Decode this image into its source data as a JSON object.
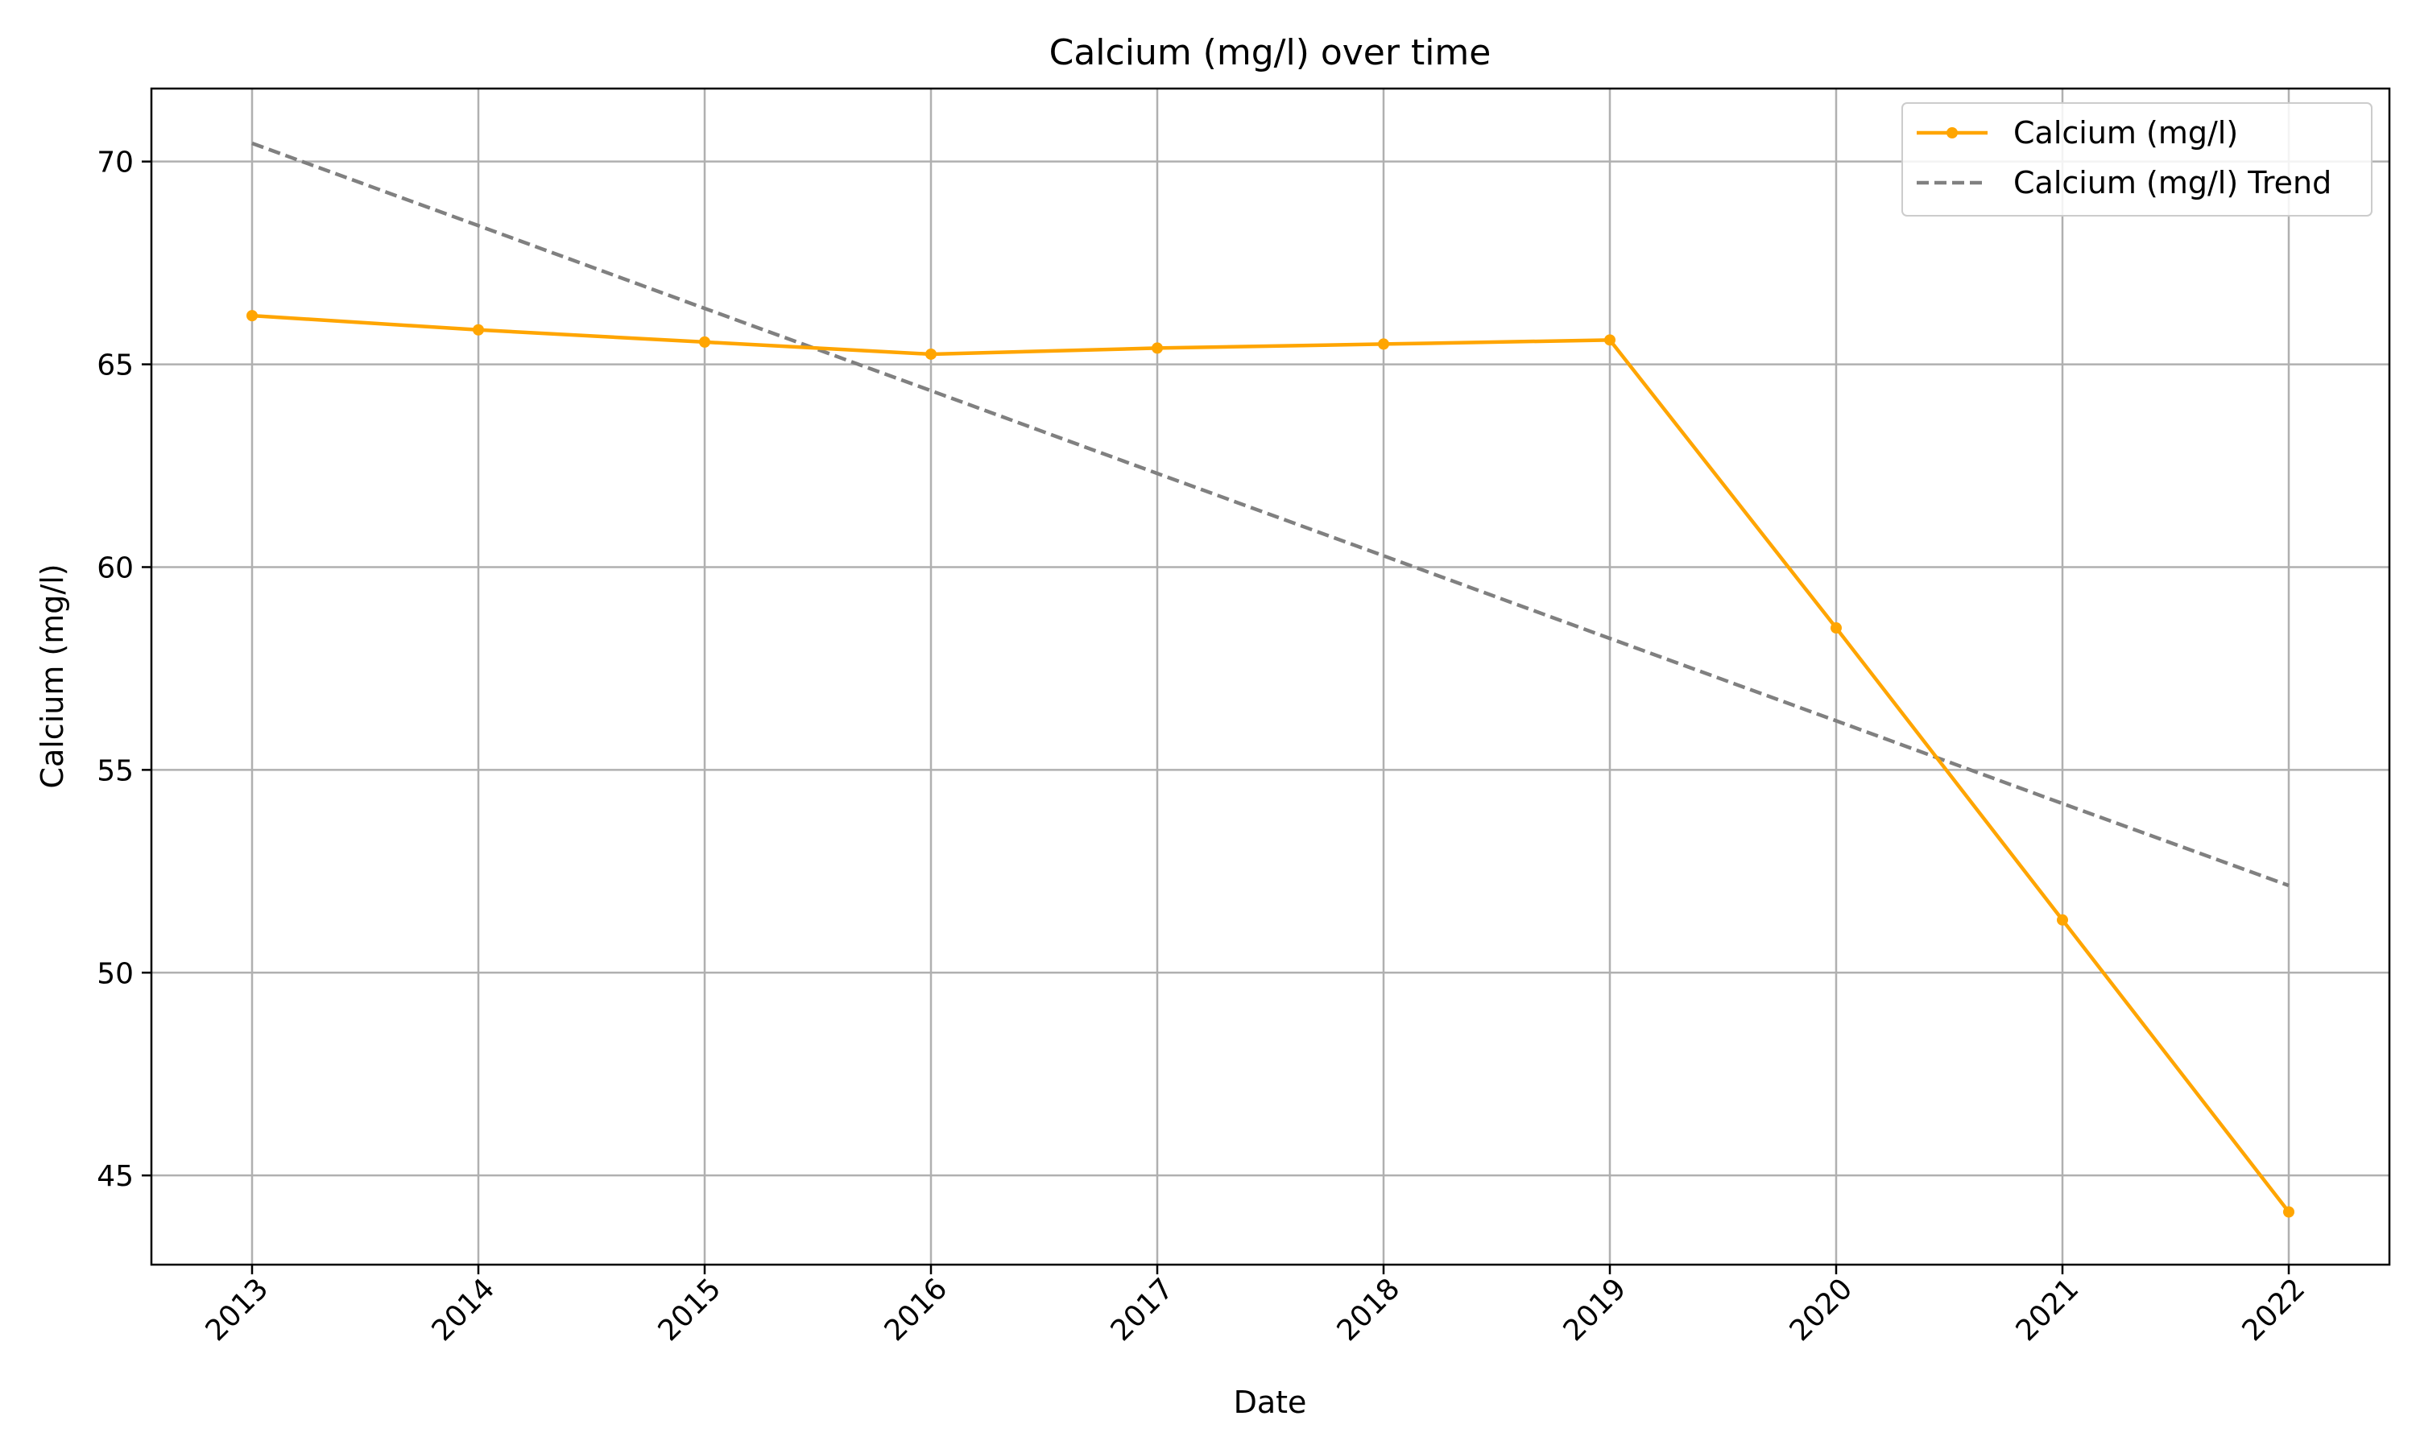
{
  "chart_data": {
    "type": "line",
    "title": "Calcium (mg/l) over time",
    "xlabel": "Date",
    "ylabel": "Calcium (mg/l)",
    "x": [
      "2013",
      "2014",
      "2015",
      "2016",
      "2017",
      "2018",
      "2019",
      "2020",
      "2021",
      "2022"
    ],
    "x_tick_labels": [
      "2013",
      "2014",
      "2015",
      "2016",
      "2017",
      "2018",
      "2019",
      "2020",
      "2021",
      "2022"
    ],
    "y_tick_labels": [
      "45",
      "50",
      "55",
      "60",
      "65",
      "70"
    ],
    "ylim": [
      42.8,
      71.8
    ],
    "grid": true,
    "legend_position": "top-right",
    "series": [
      {
        "name": "Calcium (mg/l)",
        "color": "#ffa500",
        "style": "solid",
        "marker": "circle",
        "values": [
          66.2,
          65.85,
          65.55,
          65.25,
          65.4,
          65.5,
          65.6,
          58.5,
          51.3,
          44.1
        ]
      },
      {
        "name": "Calcium (mg/l) Trend",
        "color": "#808080",
        "style": "dashed",
        "marker": "none",
        "values": [
          70.45,
          68.42,
          66.38,
          64.35,
          62.31,
          60.28,
          58.24,
          56.21,
          54.17,
          52.15
        ]
      }
    ]
  }
}
